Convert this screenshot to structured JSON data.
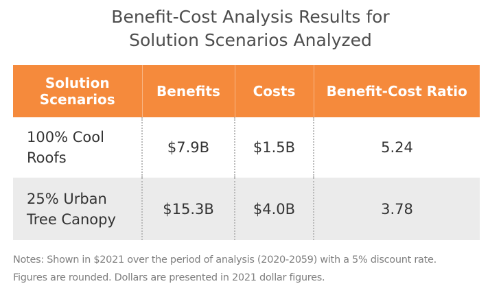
{
  "title": {
    "line1": "Benefit-Cost Analysis Results for",
    "line2": "Solution Scenarios Analyzed"
  },
  "table": {
    "headers": {
      "scenario_line1": "Solution",
      "scenario_line2": "Scenarios",
      "benefits": "Benefits",
      "costs": "Costs",
      "ratio": "Benefit-Cost Ratio"
    },
    "rows": [
      {
        "scenario_line1": "100% Cool",
        "scenario_line2": "Roofs",
        "benefits": "$7.9B",
        "costs": "$1.5B",
        "ratio": "5.24"
      },
      {
        "scenario_line1": "25% Urban",
        "scenario_line2": "Tree Canopy",
        "benefits": "$15.3B",
        "costs": "$4.0B",
        "ratio": "3.78"
      }
    ]
  },
  "notes": {
    "line1": "Notes: Shown in $2021 over the period of analysis (2020-2059) with a 5% discount rate.",
    "line2": "Figures are rounded. Dollars are presented in 2021 dollar figures."
  },
  "colors": {
    "header_bg": "#f58a3c",
    "alt_row_bg": "#ebebeb",
    "title_text": "#4d4d4d",
    "notes_text": "#7f7f7f"
  }
}
